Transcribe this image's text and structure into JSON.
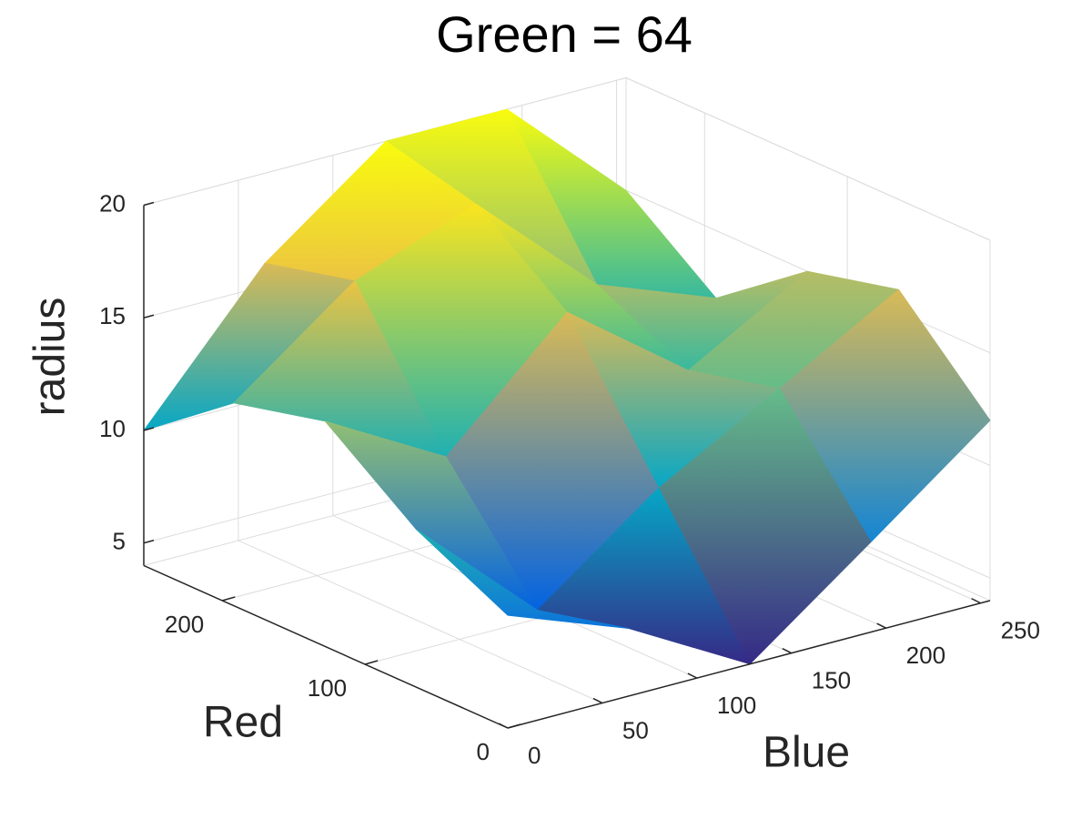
{
  "chart_data": {
    "type": "surface",
    "title": "Green = 64",
    "xlabel": "Blue",
    "ylabel": "Red",
    "zlabel": "radius",
    "x": [
      0,
      64,
      128,
      192,
      255
    ],
    "y": [
      0,
      64,
      128,
      192,
      255
    ],
    "z": [
      [
        9,
        7,
        4,
        8,
        12
      ],
      [
        11,
        6,
        10,
        13,
        16
      ],
      [
        14,
        11,
        16,
        12,
        15
      ],
      [
        13,
        17,
        19,
        14,
        12
      ],
      [
        10,
        16,
        20,
        20,
        15
      ]
    ],
    "xlim": [
      0,
      255
    ],
    "ylim": [
      0,
      255
    ],
    "zlim": [
      4,
      20
    ],
    "xticks": [
      0,
      50,
      100,
      150,
      200,
      250
    ],
    "yticks": [
      0,
      100,
      200
    ],
    "zticks": [
      5,
      10,
      15,
      20
    ],
    "grid": true,
    "colormap": [
      "#352a87",
      "#0363e1",
      "#1485d4",
      "#06a7c6",
      "#38b99e",
      "#92bf73",
      "#d9ba56",
      "#fcce2e",
      "#f9fb0e"
    ]
  }
}
